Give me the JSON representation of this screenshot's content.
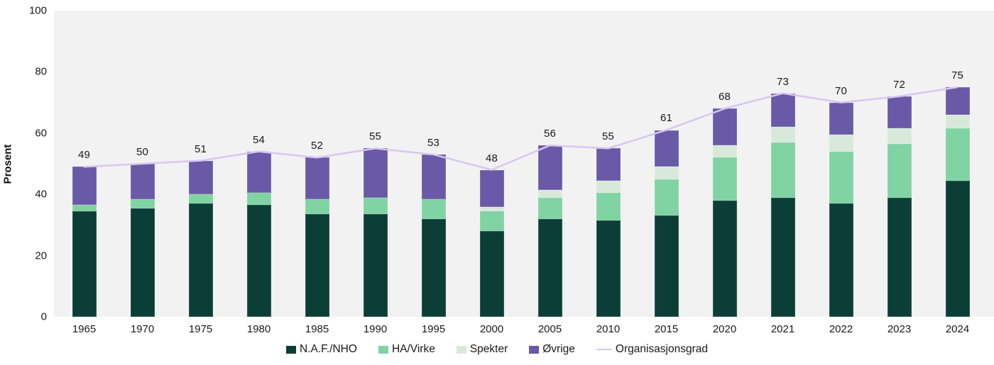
{
  "axes": {
    "y_label": "Prosent",
    "y_ticks": [
      0,
      20,
      40,
      60,
      80,
      100
    ]
  },
  "legend": {
    "items": [
      {
        "key": "naf_nho",
        "label": "N.A.F./NHO",
        "color": "#0b3e36",
        "marker": "square"
      },
      {
        "key": "ha_virke",
        "label": "HA/Virke",
        "color": "#80d3a3",
        "marker": "square"
      },
      {
        "key": "spekter",
        "label": "Spekter",
        "color": "#d8e9da",
        "marker": "square"
      },
      {
        "key": "ovrige",
        "label": "Øvrige",
        "color": "#6a59a6",
        "marker": "square"
      },
      {
        "key": "orggrad",
        "label": "Organisasjonsgrad",
        "color": "#d8c6f1",
        "marker": "line"
      }
    ]
  },
  "colors": {
    "plot_background": "#f2f2f2",
    "text": "#1a1a1a",
    "line": "#d8c6f1"
  },
  "chart_data": {
    "type": "bar",
    "subtype": "stacked-bars-with-line",
    "title": "",
    "xlabel": "",
    "ylabel": "Prosent",
    "ylim": [
      0,
      100
    ],
    "grid": false,
    "legend_position": "bottom",
    "categories": [
      "1965",
      "1970",
      "1975",
      "1980",
      "1985",
      "1990",
      "1995",
      "2000",
      "2005",
      "2010",
      "2015",
      "2020",
      "2021",
      "2022",
      "2023",
      "2024"
    ],
    "series": [
      {
        "name": "N.A.F./NHO",
        "color": "#0b3e36",
        "values": [
          34.5,
          35.5,
          37,
          36.5,
          33.5,
          33.5,
          32,
          28,
          32,
          31.5,
          33,
          38,
          39,
          37,
          39,
          44.5
        ]
      },
      {
        "name": "HA/Virke",
        "color": "#80d3a3",
        "values": [
          2,
          3,
          3,
          4,
          5,
          5.5,
          6.5,
          6.5,
          7,
          9,
          12,
          14,
          18,
          17,
          17.5,
          17
        ]
      },
      {
        "name": "Spekter",
        "color": "#d8e9da",
        "values": [
          0,
          0,
          0,
          0,
          0,
          0,
          0,
          1.5,
          2.5,
          4,
          4,
          4,
          5,
          5.5,
          5,
          4.5
        ]
      },
      {
        "name": "Øvrige",
        "color": "#6a59a6",
        "values": [
          12.5,
          11.5,
          11,
          13.5,
          13.5,
          16,
          14.5,
          12,
          14.5,
          10.5,
          12,
          12,
          11,
          10.5,
          10.5,
          9
        ]
      }
    ],
    "line_series": {
      "name": "Organisasjonsgrad",
      "color": "#d8c6f1",
      "values": [
        49,
        50,
        51,
        54,
        52,
        55,
        53,
        48,
        56,
        55,
        61,
        68,
        73,
        70,
        72,
        75
      ]
    },
    "bar_total_labels": [
      49,
      50,
      51,
      54,
      52,
      55,
      53,
      48,
      56,
      55,
      61,
      68,
      73,
      70,
      72,
      75
    ]
  }
}
